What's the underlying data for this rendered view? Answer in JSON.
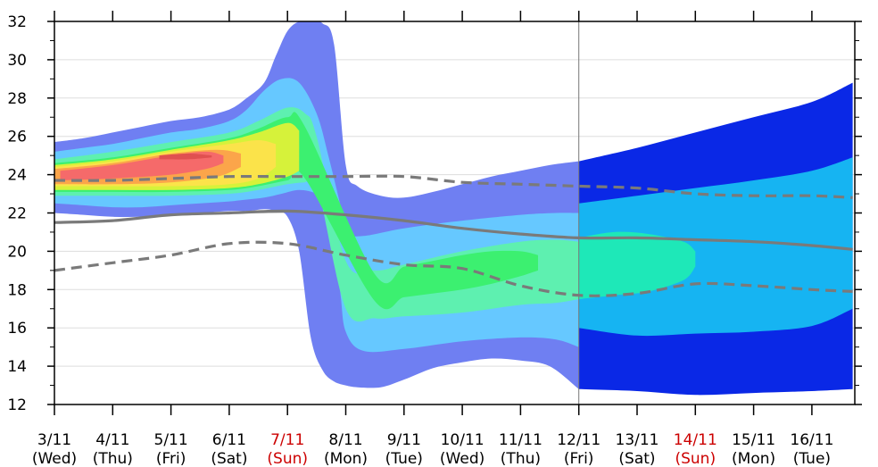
{
  "chart_data": {
    "type": "area",
    "title": "",
    "xlabel": "",
    "ylabel": "",
    "ylim": [
      12,
      32
    ],
    "y_ticks": [
      12,
      14,
      16,
      18,
      20,
      22,
      24,
      26,
      28,
      30,
      32
    ],
    "x_dates": [
      {
        "date": "3/11",
        "day": "(Wed)",
        "color": "#000000"
      },
      {
        "date": "4/11",
        "day": "(Thu)",
        "color": "#000000"
      },
      {
        "date": "5/11",
        "day": "(Fri)",
        "color": "#000000"
      },
      {
        "date": "6/11",
        "day": "(Sat)",
        "color": "#000000"
      },
      {
        "date": "7/11",
        "day": "(Sun)",
        "color": "#cc0000"
      },
      {
        "date": "8/11",
        "day": "(Mon)",
        "color": "#000000"
      },
      {
        "date": "9/11",
        "day": "(Tue)",
        "color": "#000000"
      },
      {
        "date": "10/11",
        "day": "(Wed)",
        "color": "#000000"
      },
      {
        "date": "11/11",
        "day": "(Thu)",
        "color": "#000000"
      },
      {
        "date": "12/11",
        "day": "(Fri)",
        "color": "#000000"
      },
      {
        "date": "13/11",
        "day": "(Sat)",
        "color": "#000000"
      },
      {
        "date": "14/11",
        "day": "(Sun)",
        "color": "#cc0000"
      },
      {
        "date": "15/11",
        "day": "(Mon)",
        "color": "#000000"
      },
      {
        "date": "16/11",
        "day": "(Tue)",
        "color": "#000000"
      }
    ],
    "grid": true,
    "divider_date": "12/11",
    "series": [
      {
        "style": "solid",
        "color": "#7a7a7a",
        "x": [
          0,
          1,
          2,
          3,
          4,
          5,
          6,
          7,
          8,
          9,
          10,
          11,
          12,
          13,
          13.7
        ],
        "y": [
          21.5,
          21.6,
          21.9,
          22.0,
          22.1,
          21.9,
          21.6,
          21.2,
          20.9,
          20.7,
          20.7,
          20.6,
          20.5,
          20.3,
          20.1
        ]
      },
      {
        "style": "dashed",
        "color": "#7a7a7a",
        "x": [
          0,
          1,
          2,
          3,
          4,
          5,
          6,
          7,
          8,
          9,
          10,
          11,
          12,
          13,
          13.7
        ],
        "y": [
          23.7,
          23.7,
          23.8,
          23.9,
          23.9,
          23.9,
          23.9,
          23.6,
          23.5,
          23.4,
          23.3,
          23.0,
          22.9,
          22.9,
          22.8
        ]
      },
      {
        "style": "dashed",
        "color": "#7a7a7a",
        "x": [
          0,
          1,
          2,
          3,
          4,
          5,
          6,
          7,
          8,
          9,
          10,
          11,
          12,
          13,
          13.7
        ],
        "y": [
          19.0,
          19.4,
          19.8,
          20.4,
          20.4,
          19.8,
          19.3,
          19.1,
          18.2,
          17.7,
          17.8,
          18.3,
          18.2,
          18.0,
          17.9
        ]
      }
    ],
    "density_bands": [
      {
        "color": "#6f7ff2",
        "segment": "ensemble",
        "x": [
          0,
          0.5,
          1,
          1.5,
          2,
          2.5,
          3,
          3.3,
          3.6,
          3.8,
          4.0,
          4.2,
          4.4,
          4.6,
          4.8,
          5.0,
          5.2,
          5.6,
          6.0,
          6.5,
          7.0,
          7.5,
          8.0,
          8.5,
          9.0
        ],
        "upper": [
          25.7,
          25.9,
          26.2,
          26.5,
          26.8,
          27.0,
          27.4,
          28.0,
          28.8,
          30.2,
          31.5,
          32.0,
          32.0,
          31.9,
          30.8,
          24.5,
          23.4,
          22.9,
          22.8,
          23.1,
          23.5,
          23.9,
          24.2,
          24.5,
          24.7
        ],
        "lower": [
          22.0,
          21.9,
          21.8,
          21.8,
          21.9,
          22.0,
          22.1,
          22.1,
          22.2,
          22.1,
          21.8,
          20.0,
          15.5,
          13.8,
          13.2,
          13.0,
          12.9,
          12.9,
          13.3,
          13.9,
          14.2,
          14.4,
          14.3,
          14.0,
          12.8
        ]
      },
      {
        "color": "#66c8ff",
        "segment": "ensemble",
        "x": [
          0,
          0.5,
          1,
          1.5,
          2,
          2.5,
          3,
          3.3,
          3.6,
          3.9,
          4.2,
          4.5,
          4.7,
          4.9,
          5.0,
          5.3,
          6.0,
          7.0,
          8.0,
          8.6,
          9.0
        ],
        "upper": [
          25.2,
          25.4,
          25.6,
          25.9,
          26.2,
          26.4,
          26.8,
          27.4,
          28.4,
          29.0,
          28.8,
          27.2,
          25.0,
          22.5,
          21.0,
          20.8,
          21.2,
          21.6,
          21.9,
          22.0,
          22.0
        ],
        "lower": [
          22.5,
          22.4,
          22.3,
          22.3,
          22.4,
          22.5,
          22.6,
          22.7,
          22.8,
          23.0,
          23.2,
          23.0,
          22.5,
          18.0,
          15.8,
          14.8,
          14.9,
          15.3,
          15.5,
          15.4,
          15.0
        ]
      },
      {
        "color": "#5ef0b0",
        "segment": "ensemble",
        "x": [
          0,
          1,
          2,
          3,
          3.5,
          4.0,
          4.3,
          4.5,
          5.0,
          5.5,
          6.0,
          7.0,
          8.0,
          8.6,
          9.0
        ],
        "upper": [
          24.8,
          25.2,
          25.7,
          26.2,
          26.8,
          27.5,
          27.2,
          26.0,
          19.5,
          19.0,
          19.3,
          20.0,
          20.5,
          20.6,
          20.5
        ],
        "lower": [
          22.9,
          22.9,
          22.9,
          23.0,
          23.2,
          23.5,
          23.6,
          23.6,
          17.0,
          16.5,
          16.6,
          16.8,
          17.2,
          17.3,
          17.5
        ]
      },
      {
        "color": "#3cf070",
        "segment": "ensemble",
        "x": [
          0,
          1,
          2,
          3,
          3.5,
          4.0,
          4.3,
          5.5,
          6.0,
          6.5,
          7.0,
          7.5,
          8.0,
          8.3
        ],
        "upper": [
          24.6,
          24.9,
          25.4,
          25.9,
          26.4,
          27.0,
          26.5,
          18.8,
          19.2,
          19.5,
          19.8,
          20.0,
          20.0,
          19.8
        ],
        "lower": [
          23.1,
          23.1,
          23.1,
          23.2,
          23.4,
          23.7,
          23.8,
          17.4,
          17.6,
          17.8,
          18.0,
          18.3,
          18.7,
          19.0
        ]
      },
      {
        "color": "#d6f23a",
        "segment": "ensemble",
        "x": [
          0,
          1,
          2,
          3,
          3.5,
          4.0,
          4.2
        ],
        "upper": [
          24.5,
          24.8,
          25.3,
          25.8,
          26.2,
          26.7,
          26.3
        ],
        "lower": [
          23.2,
          23.2,
          23.2,
          23.3,
          23.5,
          23.9,
          24.2
        ]
      },
      {
        "color": "#fbe34a",
        "segment": "ensemble",
        "x": [
          0,
          1,
          2,
          3,
          3.5,
          3.8
        ],
        "upper": [
          24.4,
          24.7,
          25.2,
          25.6,
          25.8,
          25.6
        ],
        "lower": [
          23.4,
          23.4,
          23.4,
          23.5,
          23.8,
          24.4
        ]
      },
      {
        "color": "#fba54a",
        "segment": "ensemble",
        "x": [
          0,
          1,
          2,
          2.8,
          3.2
        ],
        "upper": [
          24.3,
          24.6,
          25.1,
          25.3,
          25.1
        ],
        "lower": [
          23.5,
          23.5,
          23.6,
          23.9,
          24.4
        ]
      },
      {
        "color": "#f56a6a",
        "segment": "ensemble",
        "x": [
          0.1,
          1,
          2,
          2.6,
          2.9
        ],
        "upper": [
          24.2,
          24.5,
          25.0,
          25.2,
          25.0
        ],
        "lower": [
          23.7,
          23.8,
          24.0,
          24.3,
          24.6
        ]
      },
      {
        "color": "#e05050",
        "segment": "ensemble",
        "x": [
          1.8,
          2.3,
          2.7
        ],
        "upper": [
          25.0,
          25.1,
          25.0
        ],
        "lower": [
          24.8,
          24.8,
          24.9
        ]
      },
      {
        "color": "#0a28e6",
        "segment": "extended",
        "x": [
          9,
          10,
          11,
          12,
          13,
          13.7
        ],
        "upper": [
          24.7,
          25.4,
          26.2,
          27.0,
          27.8,
          28.8
        ],
        "lower": [
          12.8,
          12.7,
          12.5,
          12.6,
          12.7,
          12.8
        ]
      },
      {
        "color": "#16b4f2",
        "segment": "extended",
        "x": [
          9,
          10,
          11,
          12,
          13,
          13.7
        ],
        "upper": [
          22.5,
          22.9,
          23.3,
          23.7,
          24.2,
          24.9
        ],
        "lower": [
          16.0,
          15.6,
          15.7,
          15.8,
          16.1,
          17.0
        ]
      },
      {
        "color": "#1ee8b8",
        "segment": "extended",
        "x": [
          9,
          9.6,
          10.2,
          10.8,
          11.0
        ],
        "upper": [
          20.7,
          21.0,
          20.9,
          20.5,
          20.0
        ],
        "lower": [
          17.5,
          17.7,
          17.9,
          18.5,
          19.2
        ]
      }
    ]
  }
}
